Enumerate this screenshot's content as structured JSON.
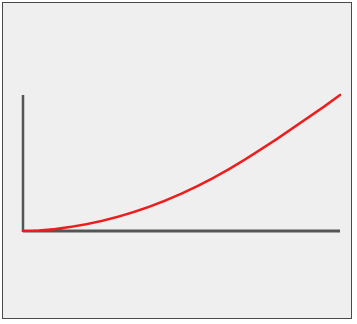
{
  "colors": {
    "panel_background": "#efefef",
    "panel_border": "#4a4a4a",
    "axis": "#555555",
    "curve": "#ee1c1c"
  },
  "chart_data": {
    "type": "line",
    "title": "",
    "xlabel": "",
    "ylabel": "",
    "grid": false,
    "legend": "none",
    "xlim": [
      0,
      1
    ],
    "ylim": [
      0,
      1
    ],
    "series": [
      {
        "color": "#ee1c1c",
        "x": [
          0,
          0.05,
          0.1,
          0.15,
          0.2,
          0.25,
          0.3,
          0.35,
          0.4,
          0.45,
          0.5,
          0.55,
          0.6,
          0.65,
          0.7,
          0.75,
          0.8,
          0.85,
          0.9,
          0.95,
          1.0
        ],
        "y": [
          0,
          0.004,
          0.014,
          0.03,
          0.05,
          0.075,
          0.105,
          0.14,
          0.18,
          0.225,
          0.275,
          0.33,
          0.39,
          0.455,
          0.525,
          0.6,
          0.675,
          0.755,
          0.835,
          0.915,
          1.0
        ]
      }
    ]
  }
}
